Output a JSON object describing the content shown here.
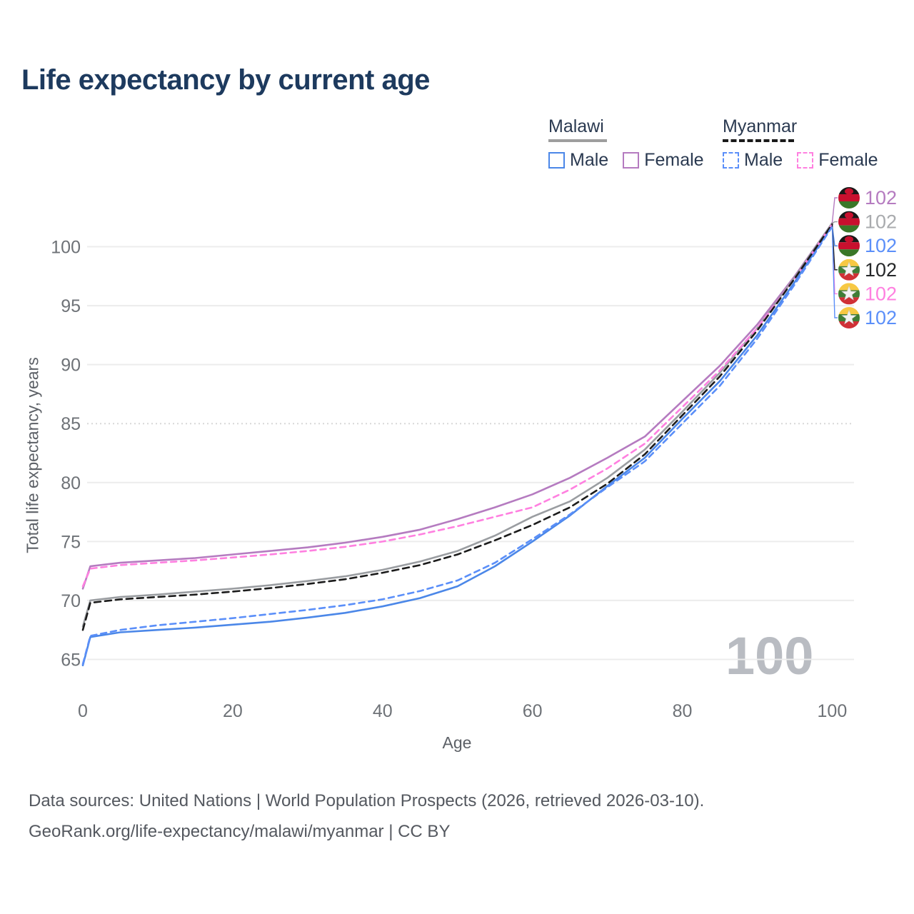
{
  "title": "Life expectancy by current age",
  "legend": {
    "groups": [
      {
        "label": "Malawi",
        "line_style": "solid",
        "line_color": "#9e9e9e",
        "items": [
          {
            "label": "Male",
            "color": "#4b87e8",
            "dashed": false
          },
          {
            "label": "Female",
            "color": "#b57bc0",
            "dashed": false
          }
        ]
      },
      {
        "label": "Myanmar",
        "line_style": "dashed",
        "line_color": "#1a1a1a",
        "items": [
          {
            "label": "Male",
            "color": "#5b8ff9",
            "dashed": true
          },
          {
            "label": "Female",
            "color": "#ff80e0",
            "dashed": true
          }
        ]
      }
    ]
  },
  "watermark": "100",
  "footer": {
    "line1": "Data sources: United Nations | World Population Prospects (2026, retrieved 2026-03-10).",
    "line2": "GeoRank.org/life-expectancy/malawi/myanmar | CC BY"
  },
  "flags": {
    "malawi": {
      "top": "#181818",
      "middle": "#c8102e",
      "bottom": "#3a7728",
      "sun": "#c8102e"
    },
    "myanmar": {
      "top": "#f7c843",
      "middle": "#3f7d36",
      "bottom": "#d03036",
      "star": "#f2f2f2"
    }
  },
  "chart_data": {
    "type": "line",
    "title": "Life expectancy by current age",
    "xlabel": "Age",
    "ylabel": "Total life expectancy, years",
    "x_ticks": [
      0,
      20,
      40,
      60,
      80,
      100
    ],
    "y_ticks": [
      65,
      70,
      75,
      80,
      85,
      90,
      95,
      100
    ],
    "xlim": [
      0,
      100
    ],
    "ylim": [
      64,
      102.5
    ],
    "grid": "horizontal",
    "dotted_gridline_at": 85,
    "legend_position": "top-right",
    "x": [
      0,
      1,
      5,
      10,
      15,
      20,
      25,
      30,
      35,
      40,
      45,
      50,
      55,
      60,
      65,
      70,
      75,
      80,
      85,
      90,
      95,
      100
    ],
    "series": [
      {
        "id": "malawi-female",
        "name": "Malawi Female",
        "country": "Malawi",
        "sex": "Female",
        "color": "#b57bc0",
        "dash": null,
        "flag": "malawi",
        "end_label": "102",
        "label_color": "#b57bc0",
        "label_row": 0,
        "values": [
          71.0,
          72.9,
          73.2,
          73.4,
          73.6,
          73.9,
          74.2,
          74.5,
          74.9,
          75.4,
          76.0,
          76.9,
          77.9,
          79.0,
          80.4,
          82.1,
          83.9,
          86.9,
          89.9,
          93.4,
          97.5,
          102.0
        ]
      },
      {
        "id": "malawi-total",
        "name": "Malawi",
        "country": "Malawi",
        "sex": "Total",
        "color": "#9a9da1",
        "dash": null,
        "flag": "malawi",
        "end_label": "102",
        "label_color": "#a9abae",
        "label_row": 1,
        "values": [
          67.8,
          70.0,
          70.3,
          70.5,
          70.75,
          71.0,
          71.3,
          71.65,
          72.05,
          72.6,
          73.3,
          74.2,
          75.5,
          77.1,
          78.4,
          80.4,
          82.8,
          86.0,
          89.3,
          93.1,
          97.4,
          102.0
        ]
      },
      {
        "id": "malawi-male",
        "name": "Malawi Male",
        "country": "Malawi",
        "sex": "Male",
        "color": "#4b87e8",
        "dash": null,
        "flag": "malawi",
        "end_label": "102",
        "label_color": "#5b8ff9",
        "label_row": 2,
        "values": [
          64.5,
          66.9,
          67.3,
          67.5,
          67.7,
          67.95,
          68.2,
          68.55,
          68.95,
          69.5,
          70.2,
          71.2,
          72.9,
          75.0,
          77.2,
          79.7,
          82.1,
          85.4,
          88.6,
          92.5,
          97.0,
          101.8
        ]
      },
      {
        "id": "myanmar-female",
        "name": "Myanmar Female",
        "country": "Myanmar",
        "sex": "Female",
        "color": "#ff80e0",
        "dash": "8 6",
        "flag": "myanmar",
        "end_label": "102",
        "label_color": "#ff80e0",
        "label_row": 4,
        "values": [
          71.2,
          72.7,
          73.0,
          73.2,
          73.4,
          73.65,
          73.9,
          74.2,
          74.55,
          75.0,
          75.6,
          76.3,
          77.1,
          77.9,
          79.4,
          81.2,
          83.3,
          86.4,
          89.5,
          93.1,
          97.3,
          101.9
        ]
      },
      {
        "id": "myanmar-total",
        "name": "Myanmar",
        "country": "Myanmar",
        "sex": "Total",
        "color": "#1c1c1c",
        "dash": "9 6",
        "flag": "myanmar",
        "end_label": "102",
        "label_color": "#26282a",
        "label_row": 3,
        "values": [
          67.5,
          69.8,
          70.1,
          70.3,
          70.5,
          70.75,
          71.05,
          71.4,
          71.8,
          72.35,
          73.0,
          73.9,
          75.1,
          76.4,
          77.9,
          79.9,
          82.4,
          85.7,
          89.0,
          92.9,
          97.3,
          101.9
        ]
      },
      {
        "id": "myanmar-male",
        "name": "Myanmar Male",
        "country": "Myanmar",
        "sex": "Male",
        "color": "#5b8ff9",
        "dash": "8 6",
        "flag": "myanmar",
        "end_label": "102",
        "label_color": "#5b8ff9",
        "label_row": 5,
        "values": [
          64.6,
          67.0,
          67.5,
          67.9,
          68.2,
          68.5,
          68.85,
          69.2,
          69.6,
          70.1,
          70.8,
          71.7,
          73.2,
          75.2,
          77.3,
          79.6,
          81.8,
          85.0,
          88.2,
          92.2,
          96.8,
          101.7
        ]
      }
    ]
  }
}
